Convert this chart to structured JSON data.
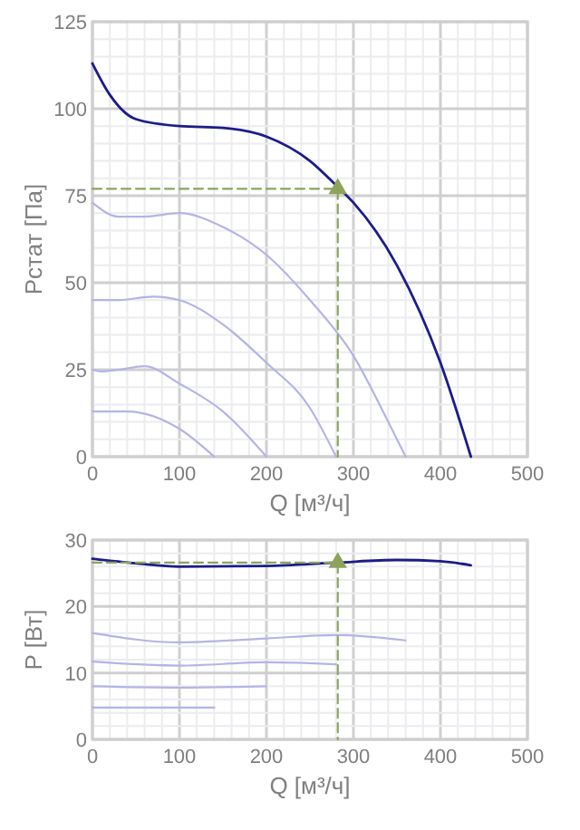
{
  "chart_data": [
    {
      "type": "line",
      "xlabel": "Q [м³/ч]",
      "ylabel": "Рстат [Па]",
      "xlim": [
        0,
        500
      ],
      "ylim": [
        0,
        125
      ],
      "grid": true,
      "xticks": [
        0,
        {
          "value": 20,
          "label": null
        },
        {
          "value": 40,
          "label": null
        },
        {
          "value": 60,
          "label": null
        },
        {
          "value": 80,
          "label": null
        },
        100,
        {
          "value": 120,
          "label": null
        },
        {
          "value": 140,
          "label": null
        },
        {
          "value": 160,
          "label": null
        },
        {
          "value": 180,
          "label": null
        },
        200,
        {
          "value": 220,
          "label": null
        },
        {
          "value": 240,
          "label": null
        },
        {
          "value": 260,
          "label": null
        },
        {
          "value": 280,
          "label": null
        },
        300,
        {
          "value": 320,
          "label": null
        },
        {
          "value": 340,
          "label": null
        },
        {
          "value": 360,
          "label": null
        },
        {
          "value": 380,
          "label": null
        },
        400,
        {
          "value": 420,
          "label": null
        },
        {
          "value": 440,
          "label": null
        },
        {
          "value": 460,
          "label": null
        },
        {
          "value": 480,
          "label": null
        },
        500
      ],
      "yticks": [
        0,
        {
          "value": 5,
          "label": null
        },
        {
          "value": 10,
          "label": null
        },
        {
          "value": 15,
          "label": null
        },
        {
          "value": 20,
          "label": null
        },
        25,
        {
          "value": 30,
          "label": null
        },
        {
          "value": 35,
          "label": null
        },
        {
          "value": 40,
          "label": null
        },
        {
          "value": 45,
          "label": null
        },
        50,
        {
          "value": 55,
          "label": null
        },
        {
          "value": 60,
          "label": null
        },
        {
          "value": 65,
          "label": null
        },
        {
          "value": 70,
          "label": null
        },
        75,
        {
          "value": 80,
          "label": null
        },
        {
          "value": 85,
          "label": null
        },
        {
          "value": 90,
          "label": null
        },
        {
          "value": 95,
          "label": null
        },
        100,
        {
          "value": 105,
          "label": null
        },
        {
          "value": 110,
          "label": null
        },
        {
          "value": 115,
          "label": null
        },
        {
          "value": 120,
          "label": null
        },
        125
      ],
      "series": [
        {
          "type": "line",
          "color": "#1c1c8a",
          "x": [
            0,
            20,
            50,
            100,
            150,
            200,
            250,
            280,
            300,
            350,
            400,
            435
          ],
          "values": [
            113,
            104,
            97,
            95,
            94.5,
            92,
            85,
            78,
            73,
            55,
            27,
            0
          ]
        },
        {
          "type": "line",
          "color": "#b4b4e6",
          "x": [
            0,
            30,
            60,
            100,
            150,
            200,
            250,
            300,
            340,
            360
          ],
          "values": [
            73,
            69,
            69,
            70,
            66,
            58,
            45,
            29,
            10,
            0
          ]
        },
        {
          "type": "line",
          "color": "#b4b4e6",
          "x": [
            0,
            30,
            70,
            100,
            150,
            200,
            250,
            280
          ],
          "values": [
            45,
            45,
            46,
            45,
            38,
            27,
            14,
            0
          ]
        },
        {
          "type": "line",
          "color": "#b4b4e6",
          "x": [
            0,
            10,
            30,
            60,
            100,
            150,
            200
          ],
          "values": [
            25,
            24.5,
            25,
            26,
            21,
            13,
            0
          ]
        },
        {
          "type": "line",
          "color": "#b4b4e6",
          "x": [
            0,
            40,
            100,
            140
          ],
          "values": [
            13,
            13,
            8,
            0
          ]
        },
        {
          "type": "line",
          "color": "#8da35c",
          "line_style": "dashed",
          "x": [
            0,
            282,
            282
          ],
          "values": [
            77,
            77,
            0
          ]
        },
        {
          "type": "scatter",
          "color": "#8da35c",
          "marker": "triangle",
          "x": [
            282
          ],
          "values": [
            77
          ]
        }
      ]
    },
    {
      "type": "line",
      "xlabel": "Q [м³/ч]",
      "ylabel": "P [Вт]",
      "xlim": [
        0,
        500
      ],
      "ylim": [
        0,
        30
      ],
      "grid": true,
      "xticks": [
        0,
        {
          "value": 20,
          "label": null
        },
        {
          "value": 40,
          "label": null
        },
        {
          "value": 60,
          "label": null
        },
        {
          "value": 80,
          "label": null
        },
        100,
        {
          "value": 120,
          "label": null
        },
        {
          "value": 140,
          "label": null
        },
        {
          "value": 160,
          "label": null
        },
        {
          "value": 180,
          "label": null
        },
        200,
        {
          "value": 220,
          "label": null
        },
        {
          "value": 240,
          "label": null
        },
        {
          "value": 260,
          "label": null
        },
        {
          "value": 280,
          "label": null
        },
        300,
        {
          "value": 320,
          "label": null
        },
        {
          "value": 340,
          "label": null
        },
        {
          "value": 360,
          "label": null
        },
        {
          "value": 380,
          "label": null
        },
        400,
        {
          "value": 420,
          "label": null
        },
        {
          "value": 440,
          "label": null
        },
        {
          "value": 460,
          "label": null
        },
        {
          "value": 480,
          "label": null
        },
        500
      ],
      "yticks": [
        0,
        {
          "value": 2,
          "label": null
        },
        {
          "value": 4,
          "label": null
        },
        {
          "value": 6,
          "label": null
        },
        {
          "value": 8,
          "label": null
        },
        10,
        {
          "value": 12,
          "label": null
        },
        {
          "value": 14,
          "label": null
        },
        {
          "value": 16,
          "label": null
        },
        {
          "value": 18,
          "label": null
        },
        20,
        {
          "value": 22,
          "label": null
        },
        {
          "value": 24,
          "label": null
        },
        {
          "value": 26,
          "label": null
        },
        {
          "value": 28,
          "label": null
        },
        30
      ],
      "series": [
        {
          "type": "line",
          "color": "#1c1c8a",
          "x": [
            0,
            50,
            100,
            200,
            280,
            350,
            400,
            435
          ],
          "values": [
            27.2,
            26.5,
            26,
            26.1,
            26.6,
            27,
            26.8,
            26.2
          ]
        },
        {
          "type": "line",
          "color": "#b4b4e6",
          "x": [
            0,
            100,
            200,
            280,
            360
          ],
          "values": [
            16,
            14.6,
            15.2,
            15.7,
            14.9
          ]
        },
        {
          "type": "line",
          "color": "#b4b4e6",
          "x": [
            0,
            100,
            200,
            280
          ],
          "values": [
            11.7,
            11.1,
            11.6,
            11.3
          ]
        },
        {
          "type": "line",
          "color": "#b4b4e6",
          "x": [
            0,
            100,
            200
          ],
          "values": [
            8,
            7.8,
            8
          ]
        },
        {
          "type": "line",
          "color": "#b4b4e6",
          "x": [
            0,
            140
          ],
          "values": [
            4.8,
            4.8
          ]
        },
        {
          "type": "line",
          "color": "#8da35c",
          "line_style": "dashed",
          "x": [
            0,
            282,
            282
          ],
          "values": [
            26.6,
            26.6,
            0
          ]
        },
        {
          "type": "scatter",
          "color": "#8da35c",
          "marker": "triangle",
          "x": [
            282
          ],
          "values": [
            26.6
          ]
        }
      ]
    }
  ]
}
